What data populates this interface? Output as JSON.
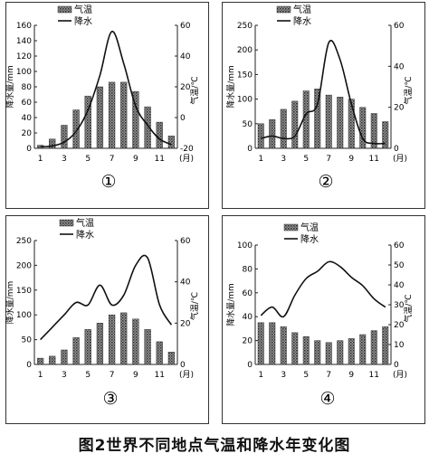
{
  "caption": "图2世界不同地点气温和降水年变化图",
  "legend": {
    "temperature": "气温",
    "precipitation": "降水"
  },
  "axis_text": {
    "left_label": "降水量/mm",
    "right_label": "气温/℃",
    "month_unit": "(月)",
    "months": [
      "1",
      "3",
      "5",
      "7",
      "9",
      "11"
    ]
  },
  "chart_data": [
    {
      "type": "bar",
      "panel_label": "①",
      "months": [
        1,
        2,
        3,
        4,
        5,
        6,
        7,
        8,
        9,
        10,
        11,
        12
      ],
      "precip_axis": {
        "ylim": [
          0,
          160
        ],
        "ticks": [
          0,
          20,
          40,
          60,
          80,
          100,
          120,
          140,
          160
        ]
      },
      "temp_axis": {
        "ylim": [
          -20,
          60
        ],
        "ticks": [
          -20,
          0,
          20,
          40,
          60
        ]
      },
      "series": [
        {
          "name": "气温",
          "type": "bar",
          "axis": "right",
          "values": [
            -18,
            -14,
            -5,
            5,
            14,
            20,
            23,
            23,
            17,
            7,
            -3,
            -12
          ]
        },
        {
          "name": "降水",
          "type": "line",
          "axis": "left",
          "values": [
            2,
            3,
            8,
            22,
            50,
            95,
            152,
            110,
            55,
            30,
            12,
            5
          ]
        }
      ]
    },
    {
      "type": "bar",
      "panel_label": "②",
      "months": [
        1,
        2,
        3,
        4,
        5,
        6,
        7,
        8,
        9,
        10,
        11,
        12
      ],
      "precip_axis": {
        "ylim": [
          0,
          250
        ],
        "ticks": [
          0,
          50,
          100,
          150,
          200,
          250
        ]
      },
      "temp_axis": {
        "ylim": [
          0,
          60
        ],
        "ticks": [
          0,
          20,
          40,
          60
        ]
      },
      "series": [
        {
          "name": "气温",
          "type": "bar",
          "axis": "right",
          "values": [
            12,
            14,
            19,
            23,
            28,
            29,
            26,
            25,
            24,
            20,
            17,
            13
          ]
        },
        {
          "name": "降水",
          "type": "line",
          "axis": "left",
          "values": [
            20,
            25,
            20,
            25,
            70,
            90,
            215,
            180,
            90,
            20,
            10,
            10
          ]
        }
      ]
    },
    {
      "type": "bar",
      "panel_label": "③",
      "months": [
        1,
        2,
        3,
        4,
        5,
        6,
        7,
        8,
        9,
        10,
        11,
        12
      ],
      "precip_axis": {
        "ylim": [
          0,
          250
        ],
        "ticks": [
          0,
          50,
          100,
          150,
          200,
          250
        ]
      },
      "temp_axis": {
        "ylim": [
          0,
          60
        ],
        "ticks": [
          0,
          20,
          40,
          60
        ]
      },
      "series": [
        {
          "name": "气温",
          "type": "bar",
          "axis": "right",
          "values": [
            3,
            4,
            7,
            13,
            17,
            20,
            24,
            25,
            22,
            17,
            11,
            6
          ]
        },
        {
          "name": "降水",
          "type": "line",
          "axis": "left",
          "values": [
            50,
            75,
            100,
            125,
            120,
            160,
            120,
            140,
            200,
            215,
            120,
            80
          ]
        }
      ]
    },
    {
      "type": "bar",
      "panel_label": "④",
      "months": [
        1,
        2,
        3,
        4,
        5,
        6,
        7,
        8,
        9,
        10,
        11,
        12
      ],
      "precip_axis": {
        "ylim": [
          0,
          100
        ],
        "ticks": [
          0,
          20,
          40,
          60,
          80,
          100
        ]
      },
      "temp_axis": {
        "ylim": [
          0,
          60
        ],
        "ticks": [
          0,
          10,
          20,
          30,
          40,
          50,
          60
        ]
      },
      "series": [
        {
          "name": "气温",
          "type": "bar",
          "axis": "right",
          "values": [
            21,
            21,
            19,
            16,
            14,
            12,
            11,
            12,
            13,
            15,
            17,
            19
          ]
        },
        {
          "name": "降水",
          "type": "line",
          "axis": "left",
          "values": [
            41,
            48,
            40,
            58,
            72,
            78,
            86,
            82,
            73,
            66,
            55,
            48
          ]
        }
      ]
    }
  ]
}
